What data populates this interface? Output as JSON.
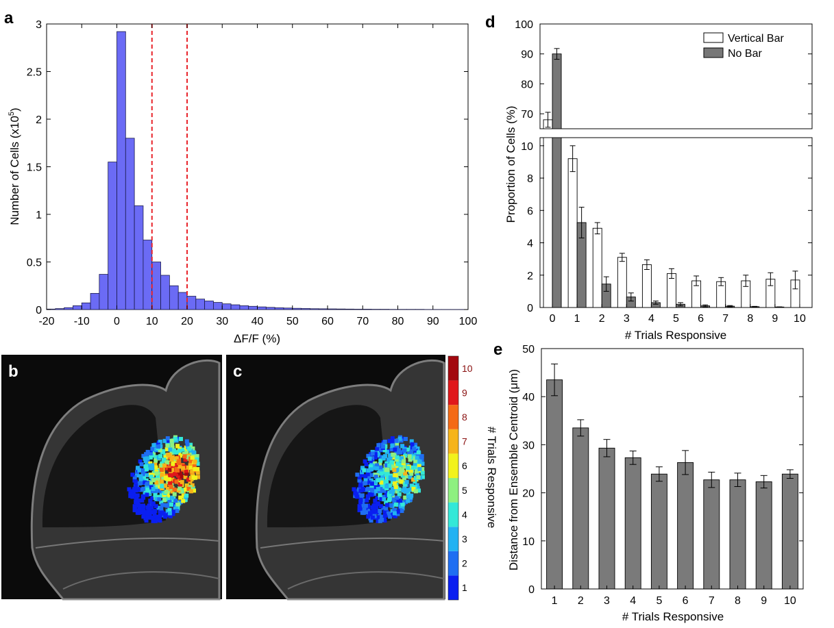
{
  "figure": {
    "panel_letters": {
      "a": "a",
      "b": "b",
      "c": "c",
      "d": "d",
      "e": "e"
    }
  },
  "chart_data": [
    {
      "panel": "a",
      "type": "bar",
      "xlabel": "ΔF/F (%)",
      "ylabel": "Number of Cells (x10",
      "ylabel_exp": "5",
      "ylabel_close": ")",
      "xlim": [
        -20,
        100
      ],
      "ylim": [
        0,
        3
      ],
      "xticks": [
        "-20",
        "-10",
        "0",
        "10",
        "20",
        "30",
        "40",
        "50",
        "60",
        "70",
        "80",
        "90",
        "100"
      ],
      "yticks": [
        "0",
        "0.5",
        "1",
        "1.5",
        "2",
        "2.5",
        "3"
      ],
      "bin_width": 2.5,
      "bin_starts": [
        -20,
        -17.5,
        -15,
        -12.5,
        -10,
        -7.5,
        -5,
        -2.5,
        0,
        2.5,
        5,
        7.5,
        10,
        12.5,
        15,
        17.5,
        20,
        22.5,
        25,
        27.5,
        30,
        32.5,
        35,
        37.5,
        40,
        42.5,
        45,
        47.5,
        50,
        52.5,
        55,
        57.5,
        60,
        62.5,
        65,
        67.5,
        70,
        72.5,
        75,
        77.5,
        80,
        82.5,
        85,
        87.5,
        90,
        92.5,
        95,
        97.5
      ],
      "values": [
        0.005,
        0.01,
        0.02,
        0.04,
        0.07,
        0.17,
        0.37,
        1.55,
        2.92,
        1.8,
        1.09,
        0.73,
        0.5,
        0.36,
        0.25,
        0.18,
        0.14,
        0.11,
        0.09,
        0.075,
        0.06,
        0.05,
        0.04,
        0.034,
        0.028,
        0.023,
        0.019,
        0.016,
        0.013,
        0.011,
        0.009,
        0.008,
        0.007,
        0.006,
        0.005,
        0.004,
        0.004,
        0.003,
        0.003,
        0.002,
        0.002,
        0.002,
        0.002,
        0.001,
        0.001,
        0.001,
        0.001,
        0.001
      ],
      "color": "#6b6bf5",
      "threshold_lines": [
        10,
        20
      ],
      "threshold_color": "#e8232a"
    },
    {
      "panel": "d",
      "type": "bar",
      "xlabel": "# Trials Responsive",
      "ylabel": "Proportion of Cells (%)",
      "categories": [
        "0",
        "1",
        "2",
        "3",
        "4",
        "5",
        "6",
        "7",
        "8",
        "9",
        "10"
      ],
      "broken_axis": {
        "lower": [
          0,
          10.5
        ],
        "upper": [
          65,
          100
        ]
      },
      "yticks_lower": [
        "0",
        "2",
        "4",
        "6",
        "8",
        "10"
      ],
      "yticks_upper": [
        "70",
        "80",
        "90",
        "100"
      ],
      "series": [
        {
          "name": "Vertical Bar",
          "color": "#ffffff",
          "values": [
            68,
            9.2,
            4.9,
            3.1,
            2.65,
            2.1,
            1.65,
            1.6,
            1.65,
            1.75,
            1.7
          ],
          "errors": [
            2.5,
            0.8,
            0.35,
            0.25,
            0.3,
            0.3,
            0.3,
            0.25,
            0.35,
            0.4,
            0.55
          ]
        },
        {
          "name": "No Bar",
          "color": "#777777",
          "values": [
            90,
            5.25,
            1.45,
            0.65,
            0.3,
            0.2,
            0.1,
            0.08,
            0.05,
            0.03,
            0
          ],
          "errors": [
            1.8,
            0.95,
            0.45,
            0.25,
            0.1,
            0.1,
            0.06,
            0.04,
            0.02,
            0.01,
            0
          ]
        }
      ],
      "legend": "top-right"
    },
    {
      "panel": "e",
      "type": "bar",
      "xlabel": "# Trials Responsive",
      "ylabel": "Distance from Ensemble Centroid (",
      "ylabel_unit": "μm",
      "ylabel_close": ")",
      "ylim": [
        0,
        50
      ],
      "yticks": [
        "0",
        "10",
        "20",
        "30",
        "40",
        "50"
      ],
      "categories": [
        "1",
        "2",
        "3",
        "4",
        "5",
        "6",
        "7",
        "8",
        "9",
        "10"
      ],
      "values": [
        43.5,
        33.5,
        29.3,
        27.3,
        23.9,
        26.3,
        22.7,
        22.7,
        22.3,
        23.9
      ],
      "errors": [
        3.3,
        1.7,
        1.8,
        1.4,
        1.5,
        2.5,
        1.6,
        1.4,
        1.3,
        0.9
      ],
      "color": "#7a7a7a"
    },
    {
      "panel": "colorbar",
      "type": "heatmap",
      "label": "# Trials Responsive",
      "ticks": [
        "1",
        "2",
        "3",
        "4",
        "5",
        "6",
        "7",
        "8",
        "9",
        "10"
      ],
      "colors": [
        "#0a1ff0",
        "#1f6ef2",
        "#22b2f2",
        "#33e8d8",
        "#8ef080",
        "#f2f21c",
        "#f6b41a",
        "#f46a16",
        "#e0171b",
        "#a3080f"
      ],
      "tick_label_colors_top": "#8a1010"
    },
    {
      "panel": "b",
      "type": "scatter",
      "description_free": true
    }
  ]
}
